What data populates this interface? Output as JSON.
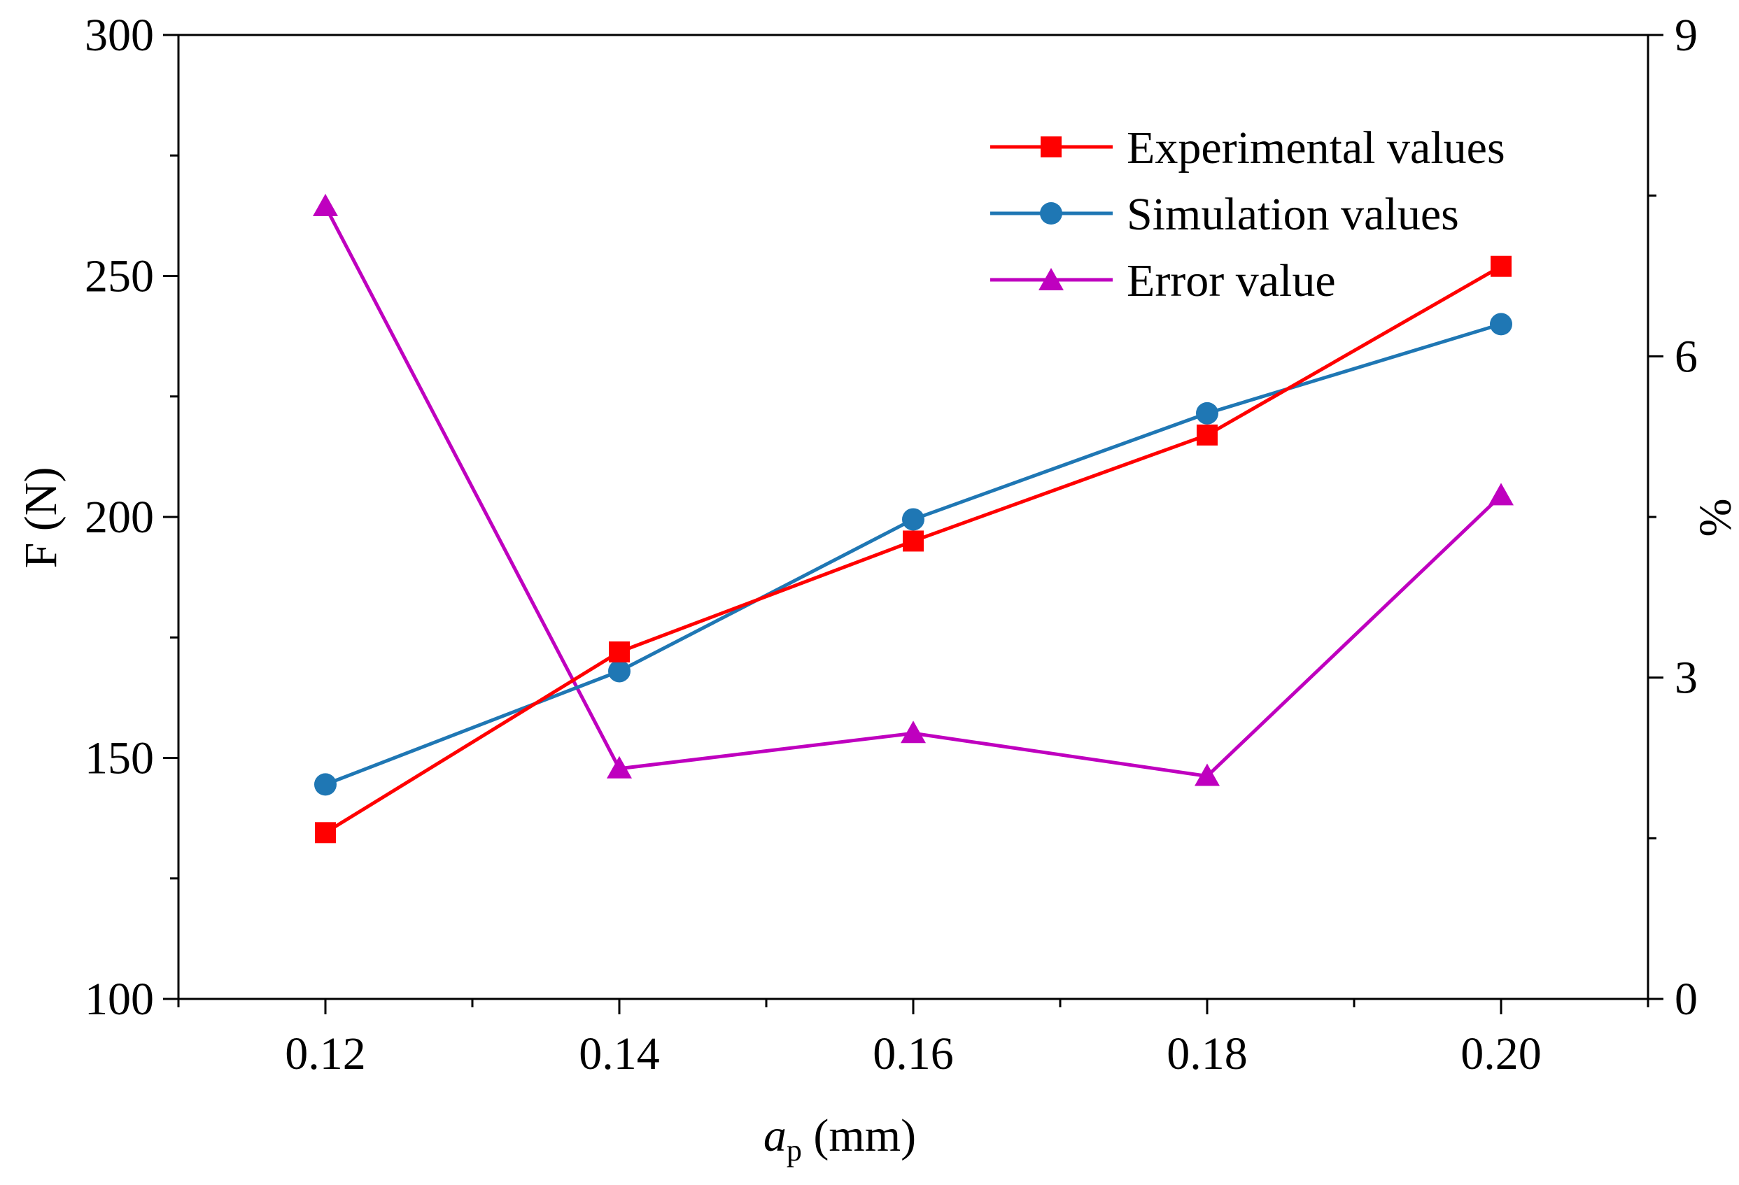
{
  "chart_data": {
    "type": "line",
    "x": [
      0.12,
      0.14,
      0.16,
      0.18,
      0.2
    ],
    "x_tick_labels": [
      "0.12",
      "0.14",
      "0.16",
      "0.18",
      "0.20"
    ],
    "xlim": [
      0.11,
      0.21
    ],
    "xlabel": {
      "main": "a",
      "sub": "p",
      "unit": " (mm)"
    },
    "y_left": {
      "label": "F (N)",
      "lim": [
        100,
        300
      ],
      "ticks": [
        100,
        150,
        200,
        250,
        300
      ],
      "tick_labels": [
        "100",
        "150",
        "200",
        "250",
        "300"
      ]
    },
    "y_right": {
      "label": "%",
      "lim": [
        0,
        9
      ],
      "ticks": [
        0,
        3,
        6,
        9
      ],
      "tick_labels": [
        "0",
        "3",
        "6",
        "9"
      ]
    },
    "series": [
      {
        "name": "Experimental values",
        "axis": "left",
        "marker": "square",
        "color": "#ff0000",
        "values": [
          134.5,
          172,
          195,
          217,
          252
        ]
      },
      {
        "name": "Simulation values",
        "axis": "left",
        "marker": "circle",
        "color": "#1f77b4",
        "values": [
          144.5,
          168,
          199.5,
          221.5,
          240
        ]
      },
      {
        "name": "Error value",
        "axis": "right",
        "marker": "triangle",
        "color": "#bf00bf",
        "values": [
          7.4,
          2.15,
          2.48,
          2.08,
          4.7
        ]
      }
    ],
    "legend": {
      "position": "top-right"
    },
    "grid": false
  }
}
